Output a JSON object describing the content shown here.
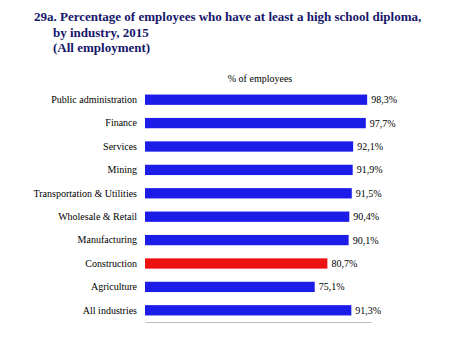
{
  "chart_data": {
    "type": "bar",
    "orientation": "horizontal",
    "title": "29a. Percentage of employees who have at least a high school diploma,\nby industry, 2015",
    "subtitle": "(All employment)",
    "x_label": "% of employees",
    "categories": [
      "Public administration",
      "Finance",
      "Services",
      "Mining",
      "Transportation & Utilities",
      "Wholesale & Retail",
      "Manufacturing",
      "Construction",
      "Agriculture",
      "All industries"
    ],
    "values": [
      98.3,
      97.7,
      92.1,
      91.9,
      91.5,
      90.4,
      90.1,
      80.7,
      75.1,
      91.3
    ],
    "value_labels": [
      "98,3%",
      "97,7%",
      "92,1%",
      "91,9%",
      "91,5%",
      "90,4%",
      "90,1%",
      "80,7%",
      "75,1%",
      "91,3%"
    ],
    "colors": [
      "#1c1ce8",
      "#1c1ce8",
      "#1c1ce8",
      "#1c1ce8",
      "#1c1ce8",
      "#1c1ce8",
      "#1c1ce8",
      "#ee1111",
      "#1c1ce8",
      "#1c1ce8"
    ],
    "xlim": [
      0,
      100
    ],
    "xticks": [],
    "tick_labels": "y",
    "data_labels": true
  }
}
